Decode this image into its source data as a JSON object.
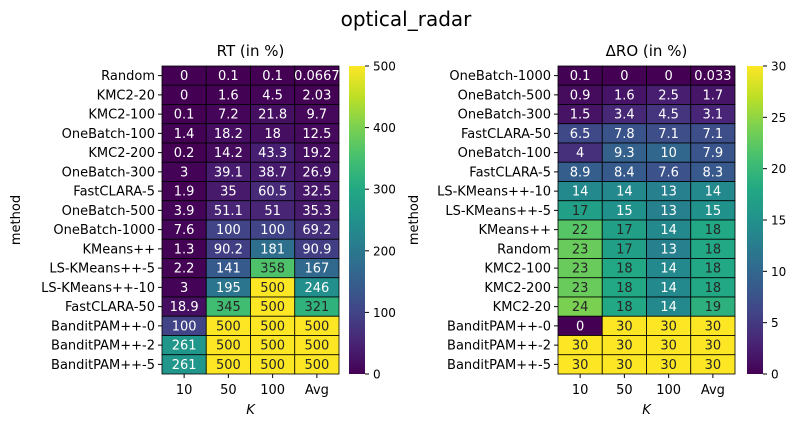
{
  "title": "optical_radar",
  "chart_data": [
    {
      "type": "heatmap",
      "title": "RT (in %)",
      "xlabel": "K",
      "ylabel": "method",
      "columns": [
        "10",
        "50",
        "100",
        "Avg"
      ],
      "rows": [
        "Random",
        "KMC2-20",
        "KMC2-100",
        "OneBatch-100",
        "KMC2-200",
        "OneBatch-300",
        "FastCLARA-5",
        "OneBatch-500",
        "OneBatch-1000",
        "KMeans++",
        "LS-KMeans++-5",
        "LS-KMeans++-10",
        "FastCLARA-50",
        "BanditPAM++-0",
        "BanditPAM++-2",
        "BanditPAM++-5"
      ],
      "values": [
        [
          0,
          0.1,
          0.1,
          0.0667
        ],
        [
          0,
          1.6,
          4.5,
          2.03
        ],
        [
          0.1,
          7.2,
          21.8,
          9.7
        ],
        [
          1.4,
          18.2,
          18,
          12.5
        ],
        [
          0.2,
          14.2,
          43.3,
          19.2
        ],
        [
          3,
          39.1,
          38.7,
          26.9
        ],
        [
          1.9,
          35,
          60.5,
          32.5
        ],
        [
          3.9,
          51.1,
          51,
          35.3
        ],
        [
          7.6,
          100,
          100,
          69.2
        ],
        [
          1.3,
          90.2,
          181,
          90.9
        ],
        [
          2.2,
          141,
          358,
          167
        ],
        [
          3,
          195,
          500,
          246
        ],
        [
          18.9,
          345,
          500,
          321
        ],
        [
          100,
          500,
          500,
          500
        ],
        [
          261,
          500,
          500,
          500
        ],
        [
          261,
          500,
          500,
          500
        ]
      ],
      "labels": [
        [
          "0",
          "0.1",
          "0.1",
          "0.0667"
        ],
        [
          "0",
          "1.6",
          "4.5",
          "2.03"
        ],
        [
          "0.1",
          "7.2",
          "21.8",
          "9.7"
        ],
        [
          "1.4",
          "18.2",
          "18",
          "12.5"
        ],
        [
          "0.2",
          "14.2",
          "43.3",
          "19.2"
        ],
        [
          "3",
          "39.1",
          "38.7",
          "26.9"
        ],
        [
          "1.9",
          "35",
          "60.5",
          "32.5"
        ],
        [
          "3.9",
          "51.1",
          "51",
          "35.3"
        ],
        [
          "7.6",
          "100",
          "100",
          "69.2"
        ],
        [
          "1.3",
          "90.2",
          "181",
          "90.9"
        ],
        [
          "2.2",
          "141",
          "358",
          "167"
        ],
        [
          "3",
          "195",
          "500",
          "246"
        ],
        [
          "18.9",
          "345",
          "500",
          "321"
        ],
        [
          "100",
          "500",
          "500",
          "500"
        ],
        [
          "261",
          "500",
          "500",
          "500"
        ],
        [
          "261",
          "500",
          "500",
          "500"
        ]
      ],
      "colorbar": {
        "range": [
          0,
          500
        ],
        "ticks": [
          0,
          100,
          200,
          300,
          400,
          500
        ],
        "colormap": "viridis"
      }
    },
    {
      "type": "heatmap",
      "title": "ΔRO (in %)",
      "xlabel": "K",
      "ylabel": "method",
      "columns": [
        "10",
        "50",
        "100",
        "Avg"
      ],
      "rows": [
        "OneBatch-1000",
        "OneBatch-500",
        "OneBatch-300",
        "FastCLARA-50",
        "OneBatch-100",
        "FastCLARA-5",
        "LS-KMeans++-10",
        "LS-KMeans++-5",
        "KMeans++",
        "Random",
        "KMC2-100",
        "KMC2-200",
        "KMC2-20",
        "BanditPAM++-0",
        "BanditPAM++-2",
        "BanditPAM++-5"
      ],
      "values": [
        [
          0.1,
          0,
          0,
          0.033
        ],
        [
          0.9,
          1.6,
          2.5,
          1.7
        ],
        [
          1.5,
          3.4,
          4.5,
          3.1
        ],
        [
          6.5,
          7.8,
          7.1,
          7.1
        ],
        [
          4,
          9.3,
          10,
          7.9
        ],
        [
          8.9,
          8.4,
          7.6,
          8.3
        ],
        [
          14,
          14,
          13,
          14
        ],
        [
          17,
          15,
          13,
          15
        ],
        [
          22,
          17,
          14,
          18
        ],
        [
          23,
          17,
          13,
          18
        ],
        [
          23,
          18,
          14,
          18
        ],
        [
          23,
          18,
          14,
          18
        ],
        [
          24,
          18,
          14,
          19
        ],
        [
          0,
          30,
          30,
          30
        ],
        [
          30,
          30,
          30,
          30
        ],
        [
          30,
          30,
          30,
          30
        ]
      ],
      "labels": [
        [
          "0.1",
          "0",
          "0",
          "0.033"
        ],
        [
          "0.9",
          "1.6",
          "2.5",
          "1.7"
        ],
        [
          "1.5",
          "3.4",
          "4.5",
          "3.1"
        ],
        [
          "6.5",
          "7.8",
          "7.1",
          "7.1"
        ],
        [
          "4",
          "9.3",
          "10",
          "7.9"
        ],
        [
          "8.9",
          "8.4",
          "7.6",
          "8.3"
        ],
        [
          "14",
          "14",
          "13",
          "14"
        ],
        [
          "17",
          "15",
          "13",
          "15"
        ],
        [
          "22",
          "17",
          "14",
          "18"
        ],
        [
          "23",
          "17",
          "13",
          "18"
        ],
        [
          "23",
          "18",
          "14",
          "18"
        ],
        [
          "23",
          "18",
          "14",
          "18"
        ],
        [
          "24",
          "18",
          "14",
          "19"
        ],
        [
          "0",
          "30",
          "30",
          "30"
        ],
        [
          "30",
          "30",
          "30",
          "30"
        ],
        [
          "30",
          "30",
          "30",
          "30"
        ]
      ],
      "colorbar": {
        "range": [
          0,
          30
        ],
        "ticks": [
          0,
          5,
          10,
          15,
          20,
          25,
          30
        ],
        "colormap": "viridis"
      }
    }
  ]
}
